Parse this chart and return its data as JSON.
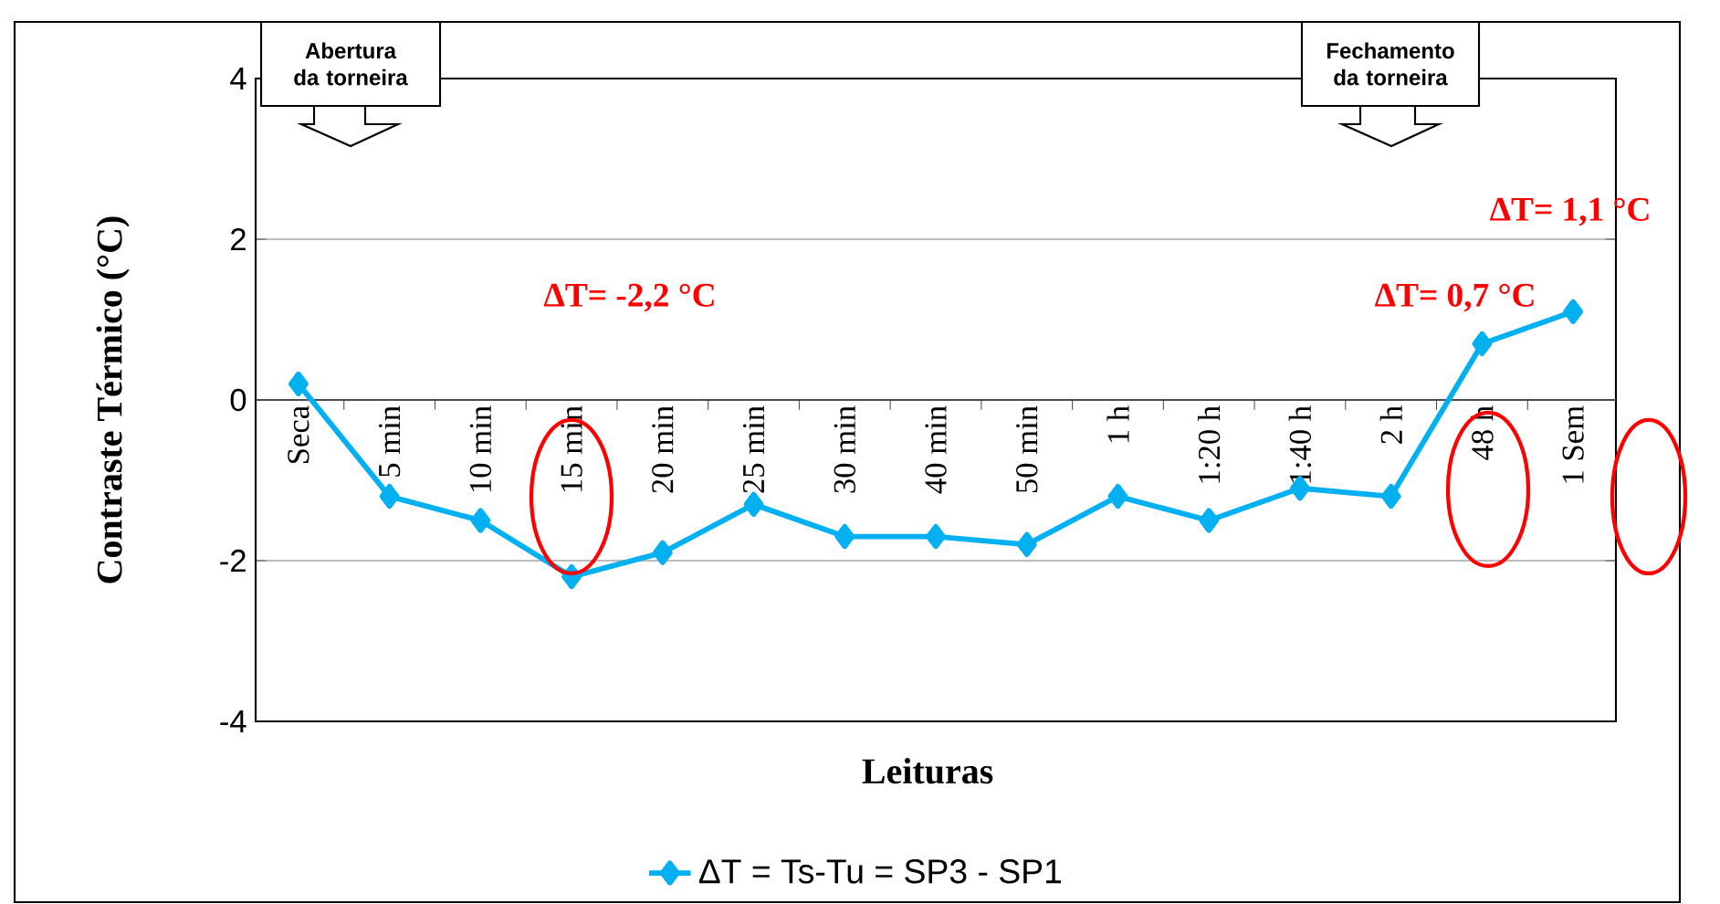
{
  "chart_data": {
    "type": "line",
    "xlabel": "Leituras",
    "ylabel": "Contraste Térmico (°C)",
    "categories": [
      "Seca",
      "5 min",
      "10 min",
      "15 min",
      "20 min",
      "25 min",
      "30 min",
      "40 min",
      "50 min",
      "1 h",
      "1:20 h",
      "1:40 h",
      "2 h",
      "48 h",
      "1 Sem"
    ],
    "series": [
      {
        "name": "ΔT = Ts-Tu = SP3 - SP1",
        "color": "#00b0f0",
        "values": [
          0.2,
          -1.2,
          -1.5,
          -2.2,
          -1.9,
          -1.3,
          -1.7,
          -1.7,
          -1.8,
          -1.2,
          -1.5,
          -1.1,
          -1.2,
          0.7,
          1.1
        ]
      }
    ],
    "ylim": [
      -4,
      4
    ],
    "yticks": [
      -4,
      -2,
      0,
      2,
      4
    ],
    "grid": "y",
    "legend": "bottom",
    "marker": "diamond",
    "line_style": "solid",
    "annotations": [
      "Abertura da torneira",
      "Fechamento da torneira",
      "ΔT= -2,2 °C",
      "ΔT= 0,7 °C",
      "ΔT= 1,1 °C"
    ]
  }
}
